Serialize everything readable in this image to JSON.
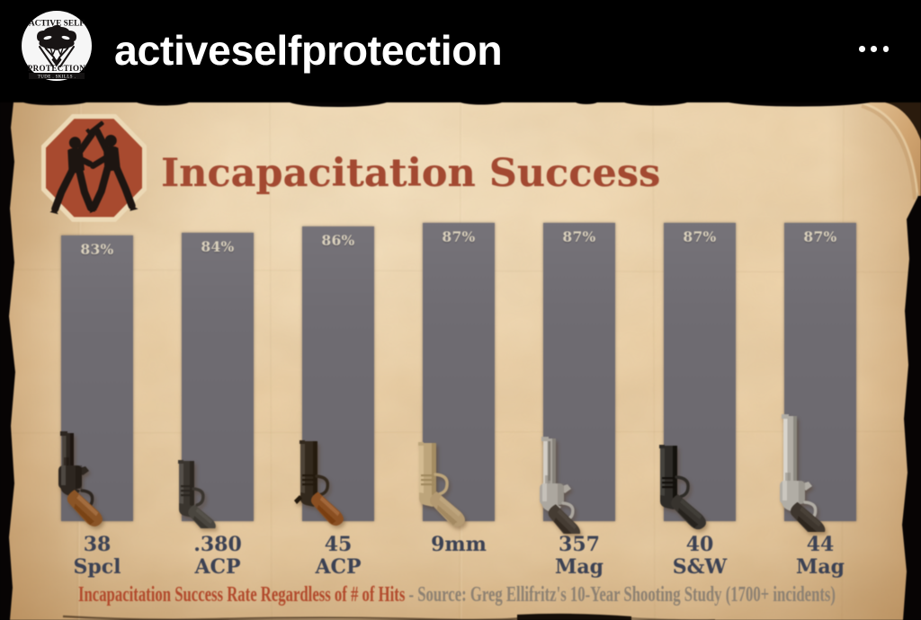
{
  "header": {
    "username": "activeselfprotection",
    "avatar": {
      "icon": "viper-snake-logo",
      "arc_text": "ACTIVE SELF",
      "name_text": "PROTECTION",
      "banner_text": "TUDE . SKILLS ."
    },
    "more_options_icon": "ellipsis-icon"
  },
  "post": {
    "badge_icon": "stop-octagon-fighting-figures-icon",
    "title": "Incapacitation Success",
    "caption_red": "Incapacitation Success Rate Regardless of # of Hits",
    "caption_gray": " - Source: Greg Ellifritz's 10-Year Shooting Study (1700+ incidents)"
  },
  "chart_data": {
    "type": "bar",
    "title": "Incapacitation Success",
    "unit": "%",
    "values": [
      83,
      84,
      86,
      87,
      87,
      87,
      87
    ],
    "value_labels": [
      "83%",
      "84%",
      "86%",
      "87%",
      "87%",
      "87%",
      "87%"
    ],
    "categories": [
      {
        "line1": "38",
        "line2": "Spcl",
        "gun_icon": "snub-revolver-icon",
        "gun_metal": "#2d2620",
        "gun_grip": "#8a5426"
      },
      {
        "line1": ".380",
        "line2": "ACP",
        "gun_icon": "compact-pistol-icon",
        "gun_metal": "#3a352f",
        "gun_grip": "#4a463f"
      },
      {
        "line1": "45",
        "line2": "ACP",
        "gun_icon": "1911-pistol-icon",
        "gun_metal": "#33291d",
        "gun_grip": "#8a4f22"
      },
      {
        "line1": "9mm",
        "line2": "",
        "gun_icon": "modern-pistol-icon",
        "gun_metal": "#bda57b",
        "gun_grip": "#b49a72"
      },
      {
        "line1": "357",
        "line2": "Mag",
        "gun_icon": "vented-revolver-icon",
        "gun_metal": "#aca79f",
        "gun_grip": "#453c33"
      },
      {
        "line1": "40",
        "line2": "S&W",
        "gun_icon": "modern-pistol-icon",
        "gun_metal": "#2e2b27",
        "gun_grip": "#37332e"
      },
      {
        "line1": "44",
        "line2": "Mag",
        "gun_icon": "magnum-revolver-icon",
        "gun_metal": "#b1ada5",
        "gun_grip": "#3e362e"
      }
    ],
    "legend": null,
    "gridlines": false,
    "bar_color": "#6f6c72",
    "note": "stylized infographic; bar heights nearly equal"
  },
  "colors": {
    "header_bg": "#000000",
    "parchment": "#eacfa6",
    "bar": "#6f6c72",
    "title_red": "#a34931",
    "label_navy": "#3c4254",
    "caption_red": "#b24a2c",
    "caption_gray": "#8d8172"
  }
}
